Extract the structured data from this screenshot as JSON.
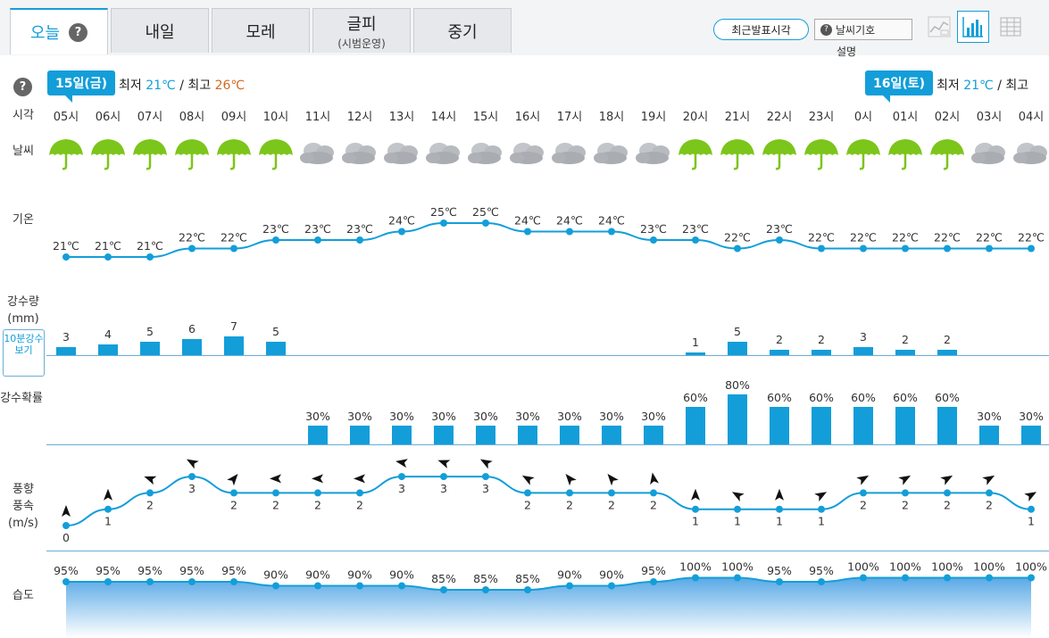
{
  "tabs": [
    {
      "label": "오늘",
      "sub": ""
    },
    {
      "label": "내일",
      "sub": ""
    },
    {
      "label": "모레",
      "sub": ""
    },
    {
      "label": "글피",
      "sub": "(시범운영)"
    },
    {
      "label": "중기",
      "sub": ""
    }
  ],
  "help_symbol": "?",
  "latest_button": "최근발표시각",
  "legend_button": "날씨기호",
  "legend_sub": "설명",
  "row_labels": {
    "time": "시각",
    "weather": "날씨",
    "temp": "기온",
    "rain_l1": "강수량",
    "rain_l2": "(mm)",
    "prob": "강수확률",
    "wind_l1": "풍향",
    "wind_l2": "풍속",
    "wind_l3": "(m/s)",
    "humidity": "습도"
  },
  "ten_min_button": "10분강수보기",
  "days": [
    {
      "label": "15일(금)",
      "min_label": "최저",
      "min": "21℃",
      "max_label": "최고",
      "max": "26℃"
    },
    {
      "label": "16일(토)",
      "min_label": "최저",
      "min": "21℃",
      "max_label": "최고",
      "max": ""
    }
  ],
  "separator": "/",
  "hours": [
    "05시",
    "06시",
    "07시",
    "08시",
    "09시",
    "10시",
    "11시",
    "12시",
    "13시",
    "14시",
    "15시",
    "16시",
    "17시",
    "18시",
    "19시",
    "20시",
    "21시",
    "22시",
    "23시",
    "0시",
    "01시",
    "02시",
    "03시",
    "04시"
  ],
  "weather": [
    "umbrella",
    "umbrella",
    "umbrella",
    "umbrella",
    "umbrella",
    "umbrella",
    "cloud",
    "cloud",
    "cloud",
    "cloud",
    "cloud",
    "cloud",
    "cloud",
    "cloud",
    "cloud",
    "umbrella",
    "umbrella",
    "umbrella",
    "umbrella",
    "umbrella",
    "umbrella",
    "umbrella",
    "cloud",
    "cloud"
  ],
  "temps": [
    21,
    21,
    21,
    22,
    22,
    23,
    23,
    23,
    24,
    25,
    25,
    24,
    24,
    24,
    23,
    23,
    22,
    23,
    22,
    22,
    22,
    22,
    22,
    22
  ],
  "temp_unit": "℃",
  "rain": [
    3,
    4,
    5,
    6,
    7,
    5,
    null,
    null,
    null,
    null,
    null,
    null,
    null,
    null,
    null,
    1,
    5,
    2,
    2,
    3,
    2,
    2,
    null,
    null
  ],
  "rain_prob": [
    null,
    null,
    null,
    null,
    null,
    null,
    30,
    30,
    30,
    30,
    30,
    30,
    30,
    30,
    30,
    60,
    80,
    60,
    60,
    60,
    60,
    60,
    30,
    30
  ],
  "wind_speed": [
    0,
    1,
    2,
    3,
    2,
    2,
    2,
    2,
    3,
    3,
    3,
    2,
    2,
    2,
    2,
    1,
    1,
    1,
    1,
    2,
    2,
    2,
    2,
    1
  ],
  "wind_dir_deg": [
    0,
    0,
    290,
    300,
    40,
    270,
    270,
    270,
    280,
    290,
    300,
    300,
    320,
    320,
    350,
    0,
    300,
    0,
    60,
    60,
    60,
    60,
    60,
    60
  ],
  "humidity": [
    95,
    95,
    95,
    95,
    95,
    90,
    90,
    90,
    90,
    85,
    85,
    85,
    90,
    90,
    95,
    100,
    100,
    95,
    95,
    100,
    100,
    100,
    100,
    100
  ],
  "pct": "%",
  "colors": {
    "accent": "#139ed9",
    "max_temp": "#d2691e",
    "umbrella": "#7cc51a",
    "cloud": "#a9adb2"
  },
  "icons": {
    "help": "help-icon",
    "line_view": "line-chart-icon",
    "bar_view": "bar-chart-icon",
    "table_view": "table-icon"
  }
}
